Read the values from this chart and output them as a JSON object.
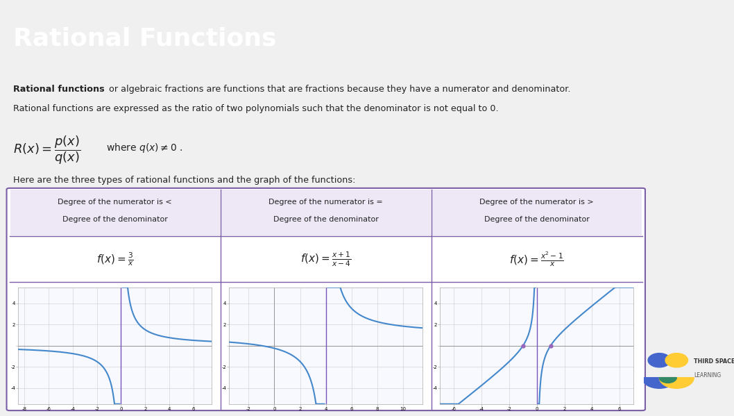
{
  "title": "Rational Functions",
  "title_bg": "#5c2d91",
  "title_color": "#ffffff",
  "title_fontsize": 26,
  "body_bg": "#ffffff",
  "outer_bg": "#f0f0f0",
  "text_color": "#222222",
  "purple_light": "#ede7f6",
  "purple_border": "#7b5ea7",
  "line_color": "#4488cc",
  "asymptote_color": "#7755bb",
  "dot_color": "#9966bb",
  "desc_line1_bold": "Rational functions",
  "desc_line1_rest": " or algebraic fractions are functions that are fractions because they have a numerator and denominator.",
  "desc_line2": "Rational functions are expressed as the ratio of two polynomials such that the denominator is not equal to 0.",
  "here_text": "Here are the three types of rational functions and the graph of the functions:",
  "col_headers": [
    "Degree of the numerator is <\nDegree of the denominator",
    "Degree of the numerator is =\nDegree of the denominator",
    "Degree of the numerator is >\nDegree of the denominator"
  ],
  "formulas": [
    "f(x) = \\frac{3}{x}",
    "f(x) = \\frac{x+1}{x-4}",
    "f(x) = \\frac{x^2-1}{x}"
  ],
  "graph1_xlim": [
    -8.5,
    7.5
  ],
  "graph1_ylim": [
    -5.5,
    5.5
  ],
  "graph1_xticks": [
    -8,
    -6,
    -4,
    -2,
    0,
    2,
    4,
    6
  ],
  "graph1_yticks": [
    -4,
    -2,
    0,
    2,
    4
  ],
  "graph2_xlim": [
    -3.5,
    11.5
  ],
  "graph2_ylim": [
    -5.5,
    5.5
  ],
  "graph2_xticks": [
    -2,
    0,
    2,
    4,
    6,
    8,
    10
  ],
  "graph2_yticks": [
    -4,
    -2,
    0,
    2,
    4
  ],
  "graph3_xlim": [
    -7,
    7
  ],
  "graph3_ylim": [
    -5.5,
    5.5
  ],
  "graph3_xticks": [
    -6,
    -4,
    -2,
    0,
    2,
    4,
    6
  ],
  "graph3_yticks": [
    -4,
    -2,
    0,
    2,
    4
  ]
}
